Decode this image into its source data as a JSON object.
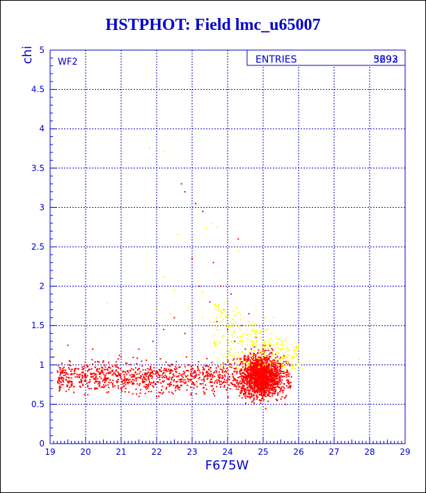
{
  "title": "HSTPHOT: Field lmc_u65007",
  "colors": {
    "title": "#0000cc",
    "frame": "#0000cc",
    "grid": "#0000cc",
    "points_primary": "#ff0000",
    "points_secondary": "#ffff00"
  },
  "panel_label": "WF2",
  "stats_box": {
    "label": "ENTRIES",
    "values": [
      "3693",
      "5292"
    ]
  },
  "chart_data": {
    "type": "scatter",
    "xlabel": "F675W",
    "ylabel": "chi",
    "xlim": [
      19,
      29
    ],
    "ylim": [
      0,
      5
    ],
    "x_ticks": [
      "19",
      "20",
      "21",
      "22",
      "23",
      "24",
      "25",
      "26",
      "27",
      "28",
      "29"
    ],
    "y_ticks": [
      "0",
      "0.5",
      "1",
      "1.5",
      "2",
      "2.5",
      "3",
      "3.5",
      "4",
      "4.5",
      "5"
    ],
    "grid": true,
    "series": [
      {
        "color": "#ffff00",
        "points": [
          [
            20.6,
            1.78
          ],
          [
            21.8,
            3.76
          ],
          [
            22.2,
            3.72
          ],
          [
            22.2,
            2.12
          ],
          [
            22.5,
            1.95
          ],
          [
            22.6,
            2.66
          ],
          [
            22.0,
            1.72
          ],
          [
            22.4,
            1.65
          ],
          [
            22.9,
            1.72
          ],
          [
            23.3,
            1.92
          ],
          [
            23.4,
            2.73
          ],
          [
            23.55,
            2.8
          ],
          [
            23.7,
            2.75
          ],
          [
            23.0,
            1.55
          ],
          [
            23.3,
            1.6
          ],
          [
            23.5,
            1.55
          ],
          [
            23.7,
            1.45
          ],
          [
            23.8,
            1.62
          ],
          [
            23.85,
            1.35
          ],
          [
            23.9,
            1.8
          ],
          [
            24.0,
            1.4
          ],
          [
            24.05,
            1.62
          ],
          [
            24.1,
            1.2
          ],
          [
            24.15,
            1.52
          ],
          [
            24.2,
            1.3
          ],
          [
            24.25,
            1.72
          ],
          [
            24.3,
            1.1
          ],
          [
            24.35,
            1.45
          ],
          [
            24.4,
            1.25
          ],
          [
            24.45,
            1.6
          ],
          [
            24.5,
            1.15
          ],
          [
            24.55,
            1.38
          ],
          [
            24.6,
            1.05
          ],
          [
            24.65,
            1.3
          ],
          [
            24.7,
            1.5
          ],
          [
            24.75,
            1.18
          ],
          [
            24.8,
            1.25
          ],
          [
            24.85,
            1.05
          ],
          [
            24.9,
            1.4
          ],
          [
            24.95,
            1.12
          ],
          [
            25.0,
            1.22
          ],
          [
            25.05,
            1.6
          ],
          [
            25.1,
            1.08
          ],
          [
            25.15,
            1.3
          ],
          [
            25.2,
            1.0
          ],
          [
            25.25,
            1.15
          ],
          [
            25.3,
            1.25
          ],
          [
            25.35,
            1.02
          ],
          [
            25.4,
            1.12
          ],
          [
            25.45,
            1.0
          ],
          [
            25.5,
            1.18
          ],
          [
            25.55,
            0.98
          ],
          [
            25.6,
            1.1
          ],
          [
            25.65,
            0.95
          ],
          [
            25.7,
            1.05
          ],
          [
            25.75,
            0.92
          ],
          [
            25.8,
            1.0
          ],
          [
            26.0,
            1.25
          ],
          [
            26.1,
            0.95
          ],
          [
            26.3,
            1.05
          ],
          [
            24.3,
            2.45
          ],
          [
            25.3,
            1.6
          ],
          [
            24.6,
            1.55
          ],
          [
            24.8,
            1.7
          ],
          [
            23.95,
            1.1
          ],
          [
            24.05,
            0.98
          ],
          [
            24.2,
            1.02
          ],
          [
            24.4,
            0.96
          ],
          [
            24.7,
            1.0
          ],
          [
            25.0,
            0.97
          ],
          [
            27.7,
            1.08
          ],
          [
            23.65,
            1.25
          ]
        ]
      },
      {
        "color": "#ff0000",
        "points": [
          [
            19.1,
            1.1
          ],
          [
            19.4,
            0.9
          ],
          [
            19.5,
            1.25
          ],
          [
            19.6,
            0.75
          ],
          [
            19.8,
            0.95
          ],
          [
            20.1,
            0.7
          ],
          [
            20.2,
            1.2
          ],
          [
            20.4,
            0.85
          ],
          [
            20.5,
            1.05
          ],
          [
            20.6,
            0.65
          ],
          [
            20.8,
            0.9
          ],
          [
            21.0,
            1.1
          ],
          [
            21.1,
            0.8
          ],
          [
            21.3,
            0.95
          ],
          [
            21.5,
            1.2
          ],
          [
            21.7,
            0.75
          ],
          [
            21.9,
            1.3
          ],
          [
            22.0,
            0.6
          ],
          [
            22.2,
            1.45
          ],
          [
            22.4,
            0.9
          ],
          [
            22.5,
            1.6
          ],
          [
            22.6,
            0.7
          ],
          [
            22.8,
            1.4
          ],
          [
            22.9,
            1.0
          ],
          [
            23.0,
            2.35
          ],
          [
            23.1,
            3.05
          ],
          [
            23.2,
            2.0
          ],
          [
            23.3,
            2.95
          ],
          [
            23.5,
            1.8
          ],
          [
            23.6,
            2.3
          ],
          [
            23.7,
            1.55
          ],
          [
            23.8,
            2.0
          ],
          [
            23.9,
            1.7
          ],
          [
            24.0,
            1.45
          ],
          [
            24.1,
            1.9
          ],
          [
            24.2,
            1.3
          ],
          [
            24.3,
            2.6
          ],
          [
            24.4,
            1.5
          ],
          [
            24.5,
            1.2
          ],
          [
            24.6,
            1.65
          ],
          [
            24.7,
            1.1
          ],
          [
            24.8,
            1.35
          ],
          [
            24.9,
            1.05
          ],
          [
            25.0,
            1.25
          ],
          [
            25.1,
            1.0
          ],
          [
            25.2,
            1.15
          ],
          [
            25.3,
            0.95
          ],
          [
            25.4,
            1.05
          ],
          [
            25.5,
            0.92
          ],
          [
            25.6,
            0.98
          ],
          [
            25.7,
            0.9
          ],
          [
            25.8,
            0.85
          ],
          [
            22.7,
            3.3
          ],
          [
            22.8,
            3.2
          ]
        ]
      }
    ]
  }
}
